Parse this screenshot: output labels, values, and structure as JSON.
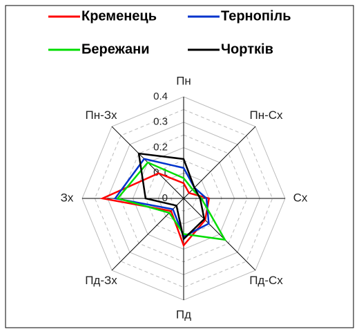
{
  "chart_data": {
    "type": "radar",
    "categories": [
      "Пн",
      "Пн-Сх",
      "Сх",
      "Пд-Сх",
      "Пд",
      "Пд-Зх",
      "Зх",
      "Пн-Зх"
    ],
    "series": [
      {
        "name": "Кременець",
        "color": "#ff0000",
        "values": [
          0.06,
          0.03,
          0.1,
          0.12,
          0.185,
          0.07,
          0.32,
          0.14
        ]
      },
      {
        "name": "Тернопіль",
        "color": "#0033cc",
        "values": [
          0.12,
          0.06,
          0.09,
          0.14,
          0.15,
          0.06,
          0.27,
          0.22
        ]
      },
      {
        "name": "Бережани",
        "color": "#00dd00",
        "values": [
          0.08,
          0.05,
          0.07,
          0.23,
          0.14,
          0.08,
          0.26,
          0.2
        ]
      },
      {
        "name": "Чортків",
        "color": "#000000",
        "values": [
          0.155,
          0.06,
          0.065,
          0.115,
          0.16,
          0.04,
          0.15,
          0.25
        ]
      }
    ],
    "rlim": [
      0,
      0.4
    ],
    "rticks": [
      0,
      0.1,
      0.2,
      0.3,
      0.4
    ],
    "grid": true,
    "legend": "top"
  }
}
